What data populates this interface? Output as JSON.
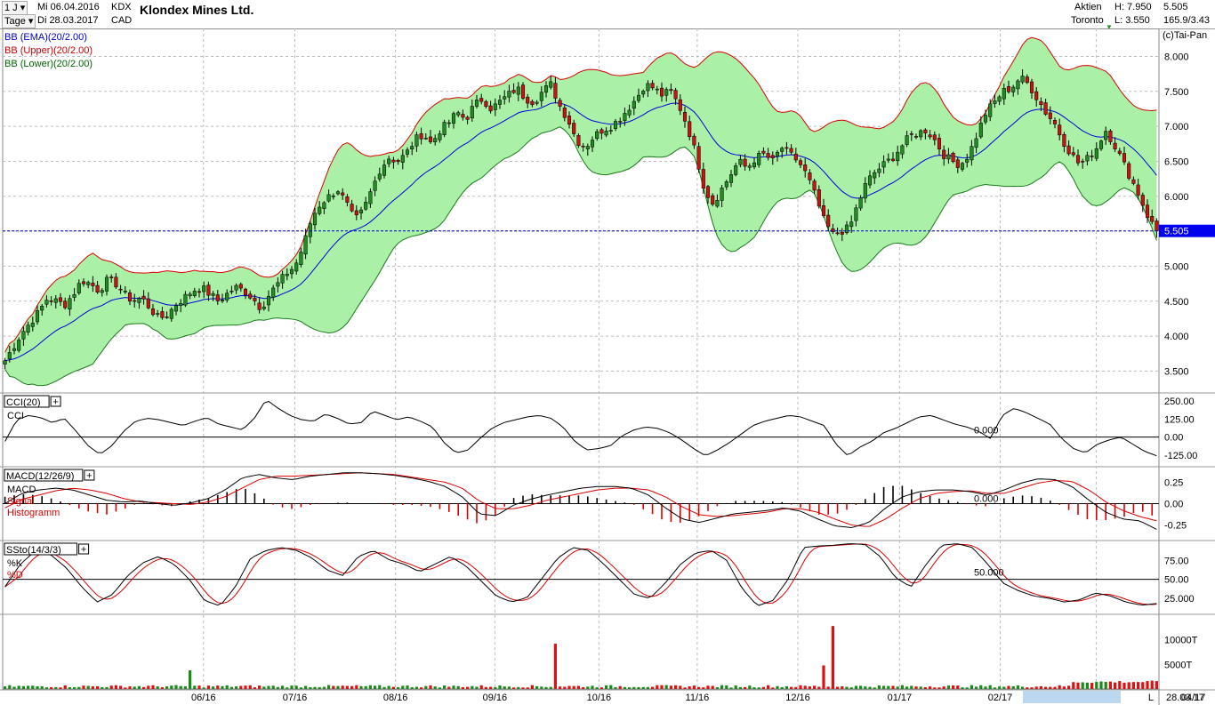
{
  "header": {
    "period": "1 J",
    "interval": "Tage",
    "date_from": "Mi 06.04.2016",
    "date_to": "Di 28.03.2017",
    "ticker": "KDX",
    "currency": "CAD",
    "company": "Klondex Mines Ltd.",
    "type": "Aktien",
    "exchange": "Toronto",
    "high": "H: 7.950",
    "low": "L: 3.550",
    "last": "5.505",
    "volume_info": "165.9/3.43"
  },
  "chart_data": [
    {
      "type": "candlestick",
      "panel": "price",
      "copyright": "(c)Tai-Pan",
      "legend": [
        "BB (EMA)(20/2.00)",
        "BB (Upper)(20/2.00)",
        "BB (Lower)(20/2.00)"
      ],
      "legend_colors": [
        "#0000cc",
        "#cc0000",
        "#006600"
      ],
      "ylim": [
        3.2,
        8.4
      ],
      "yticks": [
        "3.500",
        "4.000",
        "4.500",
        "5.000",
        "5.500",
        "6.000",
        "6.500",
        "7.000",
        "7.500",
        "8.000"
      ],
      "xticks": [
        "06/16",
        "07/16",
        "08/16",
        "09/16",
        "10/16",
        "11/16",
        "12/16",
        "01/17",
        "02/17",
        "03/17",
        "04/17"
      ],
      "last_price": "5.505",
      "close_series": [
        3.65,
        3.85,
        4.05,
        4.2,
        4.35,
        4.55,
        4.5,
        4.45,
        4.6,
        4.8,
        4.75,
        4.65,
        4.8,
        4.75,
        4.6,
        4.5,
        4.55,
        4.4,
        4.25,
        4.3,
        4.45,
        4.55,
        4.65,
        4.7,
        4.6,
        4.5,
        4.6,
        4.7,
        4.65,
        4.55,
        4.4,
        4.6,
        4.75,
        4.9,
        5.0,
        5.3,
        5.7,
        5.9,
        6.0,
        6.1,
        5.9,
        5.65,
        5.8,
        6.1,
        6.4,
        6.55,
        6.5,
        6.6,
        6.8,
        6.9,
        6.75,
        6.95,
        7.05,
        7.2,
        7.1,
        7.3,
        7.4,
        7.25,
        7.35,
        7.45,
        7.55,
        7.4,
        7.35,
        7.5,
        7.6,
        7.3,
        7.1,
        6.8,
        6.7,
        6.85,
        6.95,
        7.0,
        7.1,
        7.25,
        7.4,
        7.6,
        7.55,
        7.45,
        7.5,
        7.3,
        7.0,
        6.6,
        6.1,
        5.9,
        6.1,
        6.3,
        6.5,
        6.4,
        6.55,
        6.6,
        6.5,
        6.7,
        6.6,
        6.5,
        6.3,
        6.0,
        5.65,
        5.45,
        5.5,
        5.55,
        5.9,
        6.2,
        6.35,
        6.45,
        6.55,
        6.7,
        6.85,
        6.9,
        6.95,
        6.8,
        6.6,
        6.5,
        6.45,
        6.6,
        6.9,
        7.2,
        7.35,
        7.5,
        7.55,
        7.7,
        7.6,
        7.4,
        7.2,
        7.05,
        6.8,
        6.6,
        6.45,
        6.55,
        6.7,
        6.95,
        6.75,
        6.5,
        6.25,
        6.0,
        5.7,
        5.505
      ]
    },
    {
      "type": "line",
      "panel": "indicator",
      "name": "CCI(20)",
      "legend": [
        "CCI"
      ],
      "ylim": [
        -200,
        300
      ],
      "yticks": [
        "250.00",
        "125.00",
        "0.00",
        "-125.00"
      ],
      "zero_label": "0.000",
      "values": [
        -30,
        120,
        150,
        135,
        100,
        130,
        40,
        -60,
        -120,
        -60,
        40,
        110,
        130,
        120,
        100,
        80,
        110,
        135,
        90,
        70,
        50,
        130,
        260,
        200,
        150,
        120,
        110,
        160,
        130,
        90,
        100,
        180,
        150,
        120,
        140,
        110,
        70,
        -40,
        -110,
        -90,
        -10,
        60,
        100,
        120,
        140,
        150,
        130,
        70,
        -30,
        -90,
        -80,
        -60,
        10,
        50,
        70,
        60,
        30,
        -20,
        -80,
        -130,
        -90,
        -40,
        20,
        80,
        110,
        130,
        150,
        140,
        110,
        80,
        -50,
        -130,
        -70,
        -30,
        30,
        60,
        100,
        140,
        150,
        120,
        90,
        70,
        40,
        -10,
        150,
        200,
        170,
        130,
        90,
        -10,
        -80,
        -110,
        -50,
        -20,
        0,
        -50,
        -100,
        -130
      ]
    },
    {
      "type": "line",
      "panel": "indicator",
      "name": "MACD(12/26/9)",
      "legend": [
        "MACD",
        "Signal",
        "Histogramm"
      ],
      "ylim": [
        -0.42,
        0.42
      ],
      "yticks": [
        "0.25",
        "0.00",
        "-0.25"
      ],
      "zero_label": "0.000",
      "macd": [
        0.0,
        0.12,
        0.16,
        0.18,
        0.16,
        0.1,
        0.04,
        0.02,
        0.03,
        0.0,
        -0.02,
        0.01,
        0.06,
        0.16,
        0.3,
        0.34,
        0.3,
        0.28,
        0.32,
        0.34,
        0.36,
        0.36,
        0.35,
        0.33,
        0.3,
        0.26,
        0.2,
        0.08,
        -0.12,
        -0.14,
        -0.02,
        0.05,
        0.1,
        0.14,
        0.18,
        0.2,
        0.2,
        0.18,
        0.1,
        -0.05,
        -0.18,
        -0.22,
        -0.17,
        -0.12,
        -0.1,
        -0.08,
        -0.05,
        -0.09,
        -0.18,
        -0.26,
        -0.28,
        -0.22,
        -0.05,
        0.08,
        0.14,
        0.16,
        0.16,
        0.14,
        0.1,
        0.16,
        0.24,
        0.29,
        0.28,
        0.2,
        0.04,
        -0.1,
        -0.18,
        -0.2,
        -0.3
      ],
      "signal": [
        -0.05,
        0.05,
        0.1,
        0.15,
        0.18,
        0.16,
        0.12,
        0.06,
        0.02,
        0.01,
        0.0,
        -0.01,
        0.02,
        0.08,
        0.18,
        0.28,
        0.32,
        0.32,
        0.33,
        0.34,
        0.35,
        0.36,
        0.35,
        0.34,
        0.31,
        0.28,
        0.25,
        0.18,
        0.03,
        -0.06,
        -0.06,
        -0.02,
        0.04,
        0.08,
        0.12,
        0.16,
        0.18,
        0.18,
        0.16,
        0.08,
        -0.04,
        -0.13,
        -0.15,
        -0.14,
        -0.12,
        -0.1,
        -0.06,
        -0.06,
        -0.1,
        -0.18,
        -0.25,
        -0.27,
        -0.18,
        -0.05,
        0.06,
        0.12,
        0.14,
        0.15,
        0.12,
        0.12,
        0.18,
        0.24,
        0.27,
        0.26,
        0.16,
        0.02,
        -0.08,
        -0.15,
        -0.2
      ]
    },
    {
      "type": "line",
      "panel": "indicator",
      "name": "SSto(14/3/3)",
      "legend": [
        "%K",
        "%D"
      ],
      "ylim": [
        5,
        100
      ],
      "yticks": [
        "75.00",
        "50.00",
        "25.000"
      ],
      "mid_label": "50.000",
      "k": [
        40,
        70,
        88,
        82,
        65,
        40,
        20,
        30,
        55,
        72,
        80,
        70,
        50,
        22,
        15,
        40,
        78,
        88,
        92,
        88,
        78,
        62,
        55,
        80,
        88,
        76,
        70,
        60,
        70,
        80,
        68,
        48,
        28,
        20,
        26,
        52,
        78,
        92,
        88,
        70,
        50,
        30,
        25,
        45,
        70,
        85,
        88,
        75,
        38,
        15,
        22,
        50,
        92,
        94,
        95,
        97,
        96,
        80,
        52,
        40,
        70,
        95,
        97,
        92,
        70,
        45,
        35,
        28,
        25,
        20,
        23,
        32,
        28,
        20,
        16,
        18
      ]
    },
    {
      "type": "bar",
      "panel": "volume",
      "yticks": [
        "10000T",
        "5000T"
      ],
      "ylim": [
        0,
        15000
      ],
      "spikes": [
        {
          "x": "06/16",
          "value": 3800
        },
        {
          "x": "09/16",
          "value": 9200
        },
        {
          "x": "12/16",
          "value": 4800
        },
        {
          "x": "12/16",
          "value": 12800
        }
      ]
    }
  ],
  "date_label": "28.03.17",
  "axis_unit": "L"
}
